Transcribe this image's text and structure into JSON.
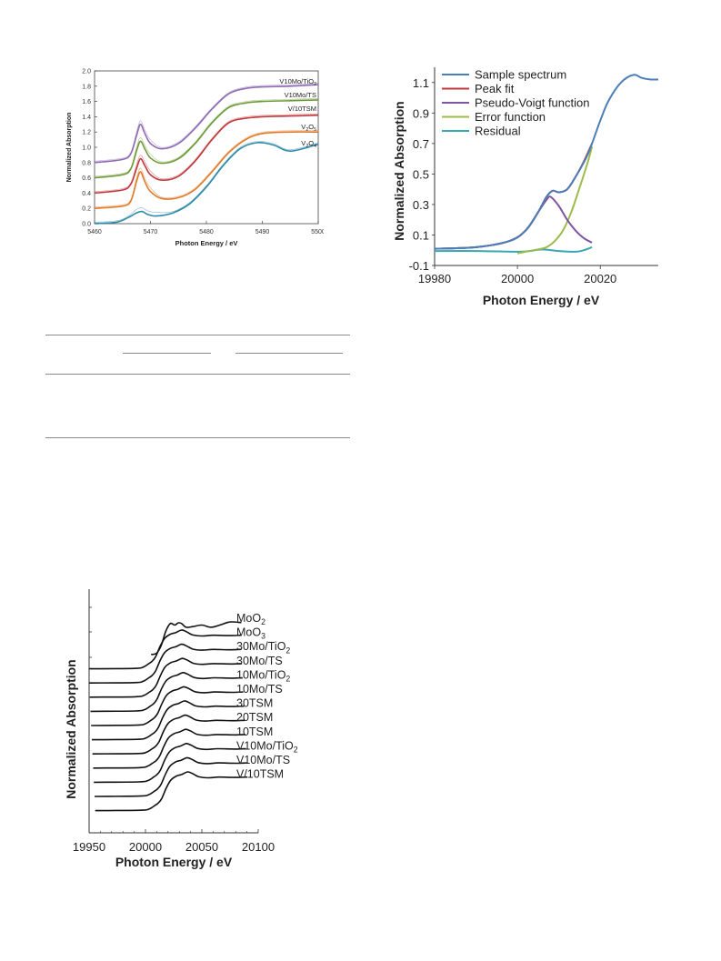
{
  "chart_data": [
    {
      "type": "line",
      "xlabel": "Photon Energy / eV",
      "ylabel": "Normalized Absorption",
      "xlim": [
        5460,
        5500
      ],
      "ylim": [
        0,
        2.0
      ],
      "xticks": [
        5460,
        5470,
        5480,
        5490,
        5500
      ],
      "yticks": [
        "0.0",
        "0.2",
        "0.4",
        "0.6",
        "0.8",
        "1.0",
        "1.2",
        "1.4",
        "1.6",
        "1.8",
        "2.0"
      ],
      "grid": false,
      "series": [
        {
          "name": "V10Mo/TiO2",
          "label": "V10Mo/TiO",
          "sub": "2",
          "color": "#8e6bb3",
          "offset": 0.8,
          "x": [
            5460,
            5465,
            5466.5,
            5467.5,
            5468.2,
            5469,
            5470,
            5472,
            5475,
            5478,
            5481,
            5484,
            5487,
            5490,
            5495,
            5500
          ],
          "y": [
            0.8,
            0.84,
            0.92,
            1.15,
            1.3,
            1.18,
            1.05,
            0.98,
            1.05,
            1.25,
            1.5,
            1.7,
            1.77,
            1.79,
            1.8,
            1.82
          ]
        },
        {
          "name": "V10Mo/TS",
          "label": "V10Mo/TS",
          "sub": "",
          "color": "#6f9a3a",
          "offset": 0.6,
          "x": [
            5460,
            5465,
            5466.5,
            5467.5,
            5468.2,
            5469,
            5470,
            5472,
            5475,
            5478,
            5481,
            5484,
            5487,
            5490,
            5495,
            5500
          ],
          "y": [
            0.6,
            0.64,
            0.72,
            0.95,
            1.08,
            0.98,
            0.86,
            0.79,
            0.85,
            1.05,
            1.32,
            1.52,
            1.58,
            1.6,
            1.61,
            1.62
          ]
        },
        {
          "name": "V/10TSM",
          "label": "V/10TSM",
          "sub": "",
          "color": "#c0393c",
          "offset": 0.4,
          "x": [
            5460,
            5465,
            5466.5,
            5467.5,
            5468.2,
            5469,
            5470,
            5472,
            5475,
            5478,
            5481,
            5484,
            5487,
            5490,
            5495,
            5500
          ],
          "y": [
            0.4,
            0.44,
            0.52,
            0.72,
            0.85,
            0.76,
            0.64,
            0.57,
            0.62,
            0.82,
            1.1,
            1.32,
            1.38,
            1.4,
            1.41,
            1.42
          ]
        },
        {
          "name": "V2O5",
          "label": "V",
          "sub": "2",
          "label2": "O",
          "sub2": "5",
          "color": "#e07a2a",
          "offset": 0.2,
          "x": [
            5460,
            5465,
            5466.5,
            5467.5,
            5468.2,
            5469,
            5470,
            5472,
            5475,
            5478,
            5481,
            5484,
            5487,
            5490,
            5495,
            5500
          ],
          "y": [
            0.2,
            0.23,
            0.3,
            0.55,
            0.68,
            0.55,
            0.42,
            0.33,
            0.34,
            0.45,
            0.68,
            0.93,
            1.1,
            1.18,
            1.2,
            1.2
          ]
        },
        {
          "name": "V2O4",
          "label": "V",
          "sub": "2",
          "label2": "O",
          "sub2": "4",
          "color": "#2e8aa8",
          "offset": 0.0,
          "x": [
            5460,
            5464,
            5466,
            5467.5,
            5468.5,
            5469.5,
            5471,
            5474,
            5477,
            5480,
            5483,
            5486,
            5489,
            5492,
            5495,
            5500
          ],
          "y": [
            0.0,
            0.02,
            0.08,
            0.14,
            0.16,
            0.12,
            0.1,
            0.14,
            0.26,
            0.48,
            0.76,
            0.98,
            1.06,
            1.03,
            0.95,
            1.04
          ]
        }
      ]
    },
    {
      "type": "line",
      "xlabel": "Photon Energy / eV",
      "ylabel": "Normalized Absorption",
      "xlim": [
        19980,
        20034
      ],
      "ylim": [
        -0.1,
        1.2
      ],
      "xticks": [
        19980,
        20000,
        20020
      ],
      "yticks": [
        "-0.1",
        "0.1",
        "0.3",
        "0.5",
        "0.7",
        "0.9",
        "1.1"
      ],
      "grid": false,
      "legend": "top-left",
      "series": [
        {
          "name": "Sample spectrum",
          "color": "#4a7eb8",
          "x": [
            19980,
            19990,
            19998,
            20002,
            20005,
            20007,
            20008.5,
            20010,
            20012,
            20014,
            20017,
            20020,
            20022,
            20025,
            20028,
            20030,
            20032,
            20034
          ],
          "y": [
            0.01,
            0.02,
            0.06,
            0.13,
            0.25,
            0.35,
            0.39,
            0.38,
            0.4,
            0.48,
            0.63,
            0.85,
            0.98,
            1.1,
            1.15,
            1.13,
            1.12,
            1.12
          ]
        },
        {
          "name": "Peak fit",
          "color": "#c0393c",
          "x": [
            19980,
            19990,
            19998,
            20002,
            20005,
            20007,
            20008.5,
            20010,
            20012,
            20014,
            20016,
            20018
          ],
          "y": [
            0.01,
            0.02,
            0.06,
            0.13,
            0.25,
            0.35,
            0.39,
            0.38,
            0.4,
            0.48,
            0.58,
            0.7
          ]
        },
        {
          "name": "Pseudo-Voigt function",
          "color": "#7e55a0",
          "x": [
            19980,
            19990,
            19998,
            20002,
            20005,
            20007,
            20008,
            20010,
            20012,
            20014,
            20016,
            20018
          ],
          "y": [
            0.01,
            0.02,
            0.06,
            0.13,
            0.25,
            0.33,
            0.35,
            0.29,
            0.2,
            0.13,
            0.08,
            0.05
          ]
        },
        {
          "name": "Error function",
          "color": "#9cbb4a",
          "x": [
            20000,
            20004,
            20007,
            20009,
            20011,
            20013,
            20015,
            20017,
            20018
          ],
          "y": [
            -0.02,
            0.0,
            0.02,
            0.06,
            0.13,
            0.25,
            0.41,
            0.58,
            0.68
          ]
        },
        {
          "name": "Residual",
          "color": "#38a8b2",
          "x": [
            19980,
            19990,
            20000,
            20003,
            20006,
            20010,
            20014,
            20016,
            20018
          ],
          "y": [
            -0.005,
            -0.005,
            -0.01,
            -0.005,
            0.005,
            -0.005,
            -0.01,
            0.0,
            0.02
          ]
        }
      ]
    },
    {
      "type": "line",
      "xlabel": "Photon Energy / eV",
      "ylabel": "Normalized Absorption",
      "xlim": [
        19950,
        20100
      ],
      "xticks": [
        19950,
        20000,
        20050,
        20100
      ],
      "grid": false,
      "series": [
        {
          "name": "MoO2",
          "label": "MoO",
          "sub": "2"
        },
        {
          "name": "MoO3",
          "label": "MoO",
          "sub": "3"
        },
        {
          "name": "30Mo/TiO2",
          "label": "30Mo/TiO",
          "sub": "2"
        },
        {
          "name": "30Mo/TS",
          "label": "30Mo/TS",
          "sub": ""
        },
        {
          "name": "10Mo/TiO2",
          "label": "10Mo/TiO",
          "sub": "2"
        },
        {
          "name": "10Mo/TS",
          "label": "10Mo/TS",
          "sub": ""
        },
        {
          "name": "30TSM",
          "label": "30TSM",
          "sub": ""
        },
        {
          "name": "20TSM",
          "label": "20TSM",
          "sub": ""
        },
        {
          "name": "10TSM",
          "label": "10TSM",
          "sub": ""
        },
        {
          "name": "V10Mo/TiO2",
          "label": "V10Mo/TiO",
          "sub": "2"
        },
        {
          "name": "V10Mo/TS",
          "label": "V10Mo/TS",
          "sub": ""
        },
        {
          "name": "V/10TSM",
          "label": "V/10TSM",
          "sub": ""
        }
      ]
    }
  ]
}
